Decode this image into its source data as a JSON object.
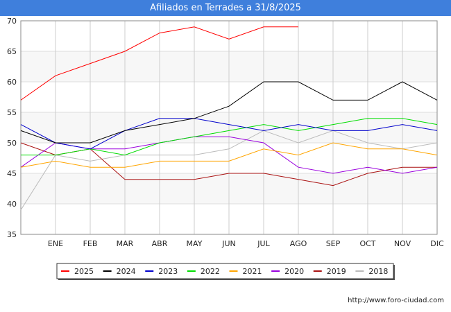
{
  "chart_data": {
    "type": "line",
    "title": "Afiliados en Terrades a 31/8/2025",
    "xlabel": "",
    "ylabel": "",
    "ylim": [
      35,
      70
    ],
    "yticks": [
      35,
      40,
      45,
      50,
      55,
      60,
      65,
      70
    ],
    "categories": [
      "",
      "ENE",
      "FEB",
      "MAR",
      "ABR",
      "MAY",
      "JUN",
      "JUL",
      "AGO",
      "SEP",
      "OCT",
      "NOV",
      "DIC"
    ],
    "grid": true,
    "legend_position": "bottom",
    "series": [
      {
        "name": "2025",
        "color": "#ff0000",
        "values": [
          57,
          61,
          63,
          65,
          68,
          69,
          67,
          69,
          69,
          null,
          null,
          null,
          null
        ]
      },
      {
        "name": "2024",
        "color": "#000000",
        "values": [
          52,
          50,
          50,
          52,
          53,
          54,
          56,
          60,
          60,
          57,
          57,
          60,
          57
        ]
      },
      {
        "name": "2023",
        "color": "#0000cc",
        "values": [
          53,
          50,
          49,
          52,
          54,
          54,
          53,
          52,
          53,
          52,
          52,
          53,
          52
        ]
      },
      {
        "name": "2022",
        "color": "#00dd00",
        "values": [
          48,
          48,
          49,
          48,
          50,
          51,
          52,
          53,
          52,
          53,
          54,
          54,
          53
        ]
      },
      {
        "name": "2021",
        "color": "#ffa500",
        "values": [
          46,
          47,
          46,
          46,
          47,
          47,
          47,
          49,
          48,
          50,
          49,
          49,
          48
        ]
      },
      {
        "name": "2020",
        "color": "#9900dd",
        "values": [
          46,
          50,
          49,
          49,
          50,
          51,
          51,
          50,
          46,
          45,
          46,
          45,
          46
        ]
      },
      {
        "name": "2019",
        "color": "#aa1111",
        "values": [
          50,
          48,
          49,
          44,
          44,
          44,
          45,
          45,
          44,
          43,
          45,
          46,
          46
        ]
      },
      {
        "name": "2018",
        "color": "#bbbbbb",
        "values": [
          39,
          48,
          47,
          48,
          48,
          48,
          49,
          52,
          50,
          52,
          50,
          49,
          50
        ]
      }
    ]
  },
  "footer": {
    "url": "http://www.foro-ciudad.com"
  }
}
